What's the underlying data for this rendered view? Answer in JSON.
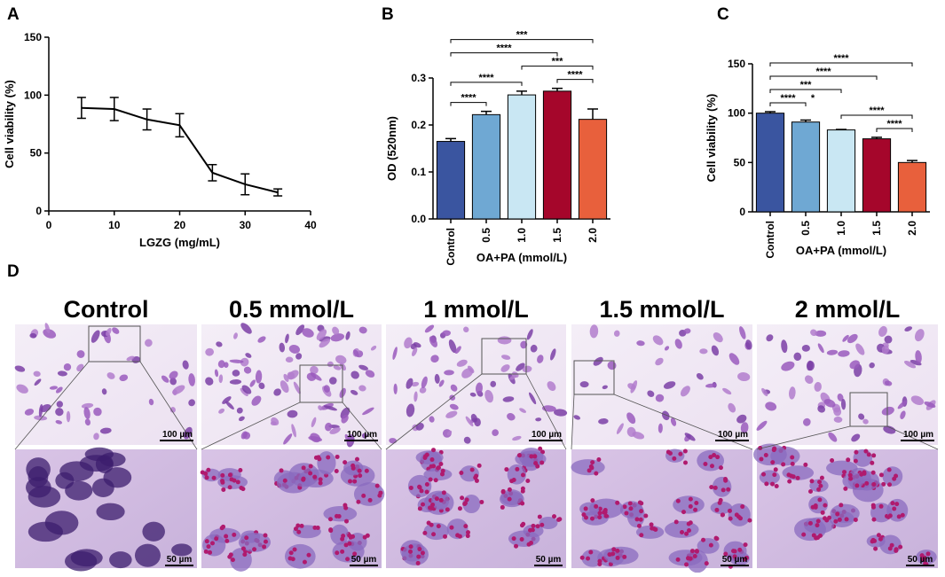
{
  "chart_data": [
    {
      "type": "line",
      "panel": "A",
      "xlabel": "LGZG (mg/mL)",
      "ylabel": "Cell viability (%)",
      "x": [
        5,
        10,
        15,
        20,
        25,
        30,
        35
      ],
      "values": [
        89,
        88,
        79,
        74,
        33,
        23,
        16
      ],
      "errors": [
        9,
        10,
        9,
        10,
        7,
        9,
        3
      ],
      "color": "#000000",
      "xlim": [
        0,
        40
      ],
      "xticks": [
        0,
        10,
        20,
        30,
        40
      ],
      "ylim": [
        0,
        150
      ],
      "yticks": [
        0,
        50,
        100,
        150
      ]
    },
    {
      "type": "bar",
      "panel": "B",
      "xlabel": "OA+PA (mmol/L)",
      "ylabel": "OD (520nm)",
      "categories": [
        "Control",
        "0.5",
        "1.0",
        "1.5",
        "2.0"
      ],
      "values": [
        0.165,
        0.222,
        0.264,
        0.272,
        0.212
      ],
      "errors": [
        0.006,
        0.007,
        0.008,
        0.006,
        0.022
      ],
      "colors": [
        "#3a55a0",
        "#6fa8d3",
        "#c9e7f3",
        "#a5062b",
        "#e8603c"
      ],
      "ylim": [
        0,
        0.3
      ],
      "yticks": [
        {
          "value": 0,
          "label": "0.0"
        },
        0.1,
        0.2,
        0.3
      ],
      "brackets": [
        {
          "from": 0,
          "to": 1,
          "label": "****"
        },
        {
          "from": 3,
          "to": 4,
          "label": "****"
        },
        {
          "from": 0,
          "to": 2,
          "label": "****"
        },
        {
          "from": 2,
          "to": 4,
          "label": "***"
        },
        {
          "from": 0,
          "to": 3,
          "label": "****"
        },
        {
          "from": 0,
          "to": 4,
          "label": "***"
        }
      ]
    },
    {
      "type": "bar",
      "panel": "C",
      "xlabel": "OA+PA (mmol/L)",
      "ylabel": "Cell viability (%)",
      "categories": [
        "Control",
        "0.5",
        "1.0",
        "1.5",
        "2.0"
      ],
      "values": [
        100,
        91,
        83,
        74,
        50
      ],
      "errors": [
        1.5,
        2,
        0.5,
        1.5,
        2
      ],
      "colors": [
        "#3a55a0",
        "#6fa8d3",
        "#c9e7f3",
        "#a5062b",
        "#e8603c"
      ],
      "ylim": [
        0,
        150
      ],
      "yticks": [
        0,
        50,
        100,
        150
      ],
      "brackets": [
        {
          "from": 0,
          "to": 1,
          "label": "****"
        },
        {
          "from": 3,
          "to": 4,
          "label": "****"
        },
        {
          "from": 2,
          "to": 4,
          "label": "****"
        },
        {
          "from": 0,
          "to": 2,
          "label": "***"
        },
        {
          "from": 0,
          "to": 3,
          "label": "****"
        },
        {
          "from": 0,
          "to": 4,
          "label": "****"
        }
      ],
      "star_annotations": [
        {
          "index": 1,
          "label": "*"
        }
      ]
    }
  ],
  "figure_d": {
    "panel": "D",
    "titles": [
      "Control",
      "0.5 mmol/L",
      "1 mmol/L",
      "1.5 mmol/L",
      "2 mmol/L"
    ],
    "scale_top": "100 µm",
    "scale_bottom": "50 µm"
  }
}
